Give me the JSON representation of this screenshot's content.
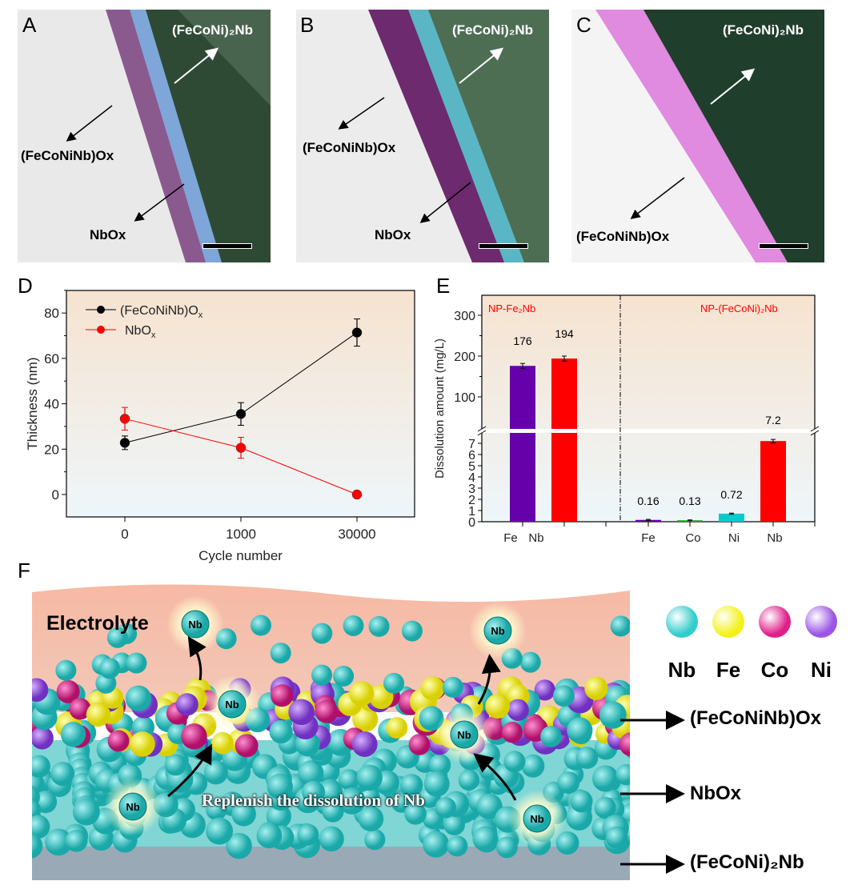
{
  "panels": {
    "A": "A",
    "B": "B",
    "C": "C",
    "D": "D",
    "E": "E",
    "F": "F"
  },
  "tem": {
    "A": {
      "matrix": "(FeCoNi)₂Nb",
      "layer1": "(FeCoNiNb)Ox",
      "layer2": "NbOx"
    },
    "B": {
      "matrix": "(FeCoNi)₂Nb",
      "layer1": "(FeCoNiNb)Ox",
      "layer2": "NbOx"
    },
    "C": {
      "matrix": "(FeCoNi)₂Nb",
      "layer1": "(FeCoNiNb)Ox"
    }
  },
  "chart_data": [
    {
      "type": "line",
      "panel": "D",
      "xlabel": "Cycle number",
      "ylabel": "Thickness (nm)",
      "categories": [
        "0",
        "1000",
        "30000"
      ],
      "ylim": [
        -10,
        90
      ],
      "yticks": [
        "0",
        "20",
        "40",
        "60",
        "80"
      ],
      "legend_position": "top-left",
      "series": [
        {
          "name": "(FeCoNiNb)Ox",
          "color": "#000000",
          "values": [
            22.8,
            35.5,
            71.4
          ],
          "errors": [
            3,
            5,
            6
          ]
        },
        {
          "name": "NbOx",
          "color": "#ff0000",
          "values": [
            33.4,
            20.6,
            0
          ],
          "errors": [
            5,
            4.6,
            0
          ]
        }
      ]
    },
    {
      "type": "bar",
      "panel": "E",
      "ylabel": "Dissolution amount (mg/L)",
      "broken_axis": true,
      "lower_range": [
        0,
        7.8
      ],
      "upper_range": [
        20,
        350
      ],
      "upper_ticks": [
        "100",
        "200",
        "300"
      ],
      "lower_ticks": [
        "0",
        "1",
        "2",
        "3",
        "4",
        "5",
        "6",
        "7"
      ],
      "groups": [
        {
          "name": "NP-Fe₂Nb",
          "bars": [
            {
              "label": "Fe",
              "value": 176,
              "text": "176",
              "color": "#6600aa",
              "error": 6
            },
            {
              "label": "Nb",
              "value": 194,
              "text": "194",
              "color": "#ff0000",
              "error": 6
            }
          ]
        },
        {
          "name": "NP-(FeCoNi)₂Nb",
          "bars": [
            {
              "label": "Fe",
              "value": 0.16,
              "text": "0.16",
              "color": "#6600aa",
              "error": 0.05
            },
            {
              "label": "Co",
              "value": 0.13,
              "text": "0.13",
              "color": "#22aa22",
              "error": 0.03
            },
            {
              "label": "Ni",
              "value": 0.72,
              "text": "0.72",
              "color": "#00cccc",
              "error": 0.05
            },
            {
              "label": "Nb",
              "value": 7.2,
              "text": "7.2",
              "color": "#ff0000",
              "error": 0.15
            }
          ]
        }
      ]
    }
  ],
  "schematic": {
    "electrolyte": "Electrolyte",
    "replenish": "Replenish the dissolution of Nb",
    "nb_ion": "Nb",
    "layers": [
      "(FeCoNiNb)Ox",
      "NbOx",
      "(FeCoNi)₂Nb"
    ],
    "legend": [
      {
        "label": "Nb",
        "color": "#33cccc"
      },
      {
        "label": "Fe",
        "color": "#f2f21a"
      },
      {
        "label": "Co",
        "color": "#e0208a"
      },
      {
        "label": "Ni",
        "color": "#9a55e6"
      }
    ]
  }
}
